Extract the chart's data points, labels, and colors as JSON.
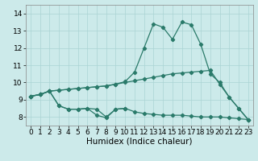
{
  "title": "",
  "xlabel": "Humidex (Indice chaleur)",
  "x": [
    0,
    1,
    2,
    3,
    4,
    5,
    6,
    7,
    8,
    9,
    10,
    11,
    12,
    13,
    14,
    15,
    16,
    17,
    18,
    19,
    20,
    21,
    22,
    23
  ],
  "line1": [
    9.2,
    9.3,
    9.5,
    9.55,
    9.6,
    9.65,
    9.7,
    9.75,
    9.8,
    9.9,
    10.0,
    10.1,
    10.2,
    10.3,
    10.4,
    10.5,
    10.55,
    10.6,
    10.65,
    10.7,
    9.9,
    9.15,
    8.5,
    7.85
  ],
  "line2": [
    9.2,
    9.3,
    9.5,
    9.55,
    9.6,
    9.65,
    9.7,
    9.75,
    9.8,
    9.9,
    10.05,
    10.6,
    12.0,
    13.4,
    13.2,
    12.5,
    13.5,
    13.35,
    12.2,
    10.5,
    10.0,
    9.15,
    8.5,
    7.85
  ],
  "line3": [
    9.2,
    9.3,
    9.5,
    8.65,
    8.45,
    8.45,
    8.5,
    8.1,
    7.95,
    8.45,
    8.5,
    null,
    null,
    null,
    null,
    null,
    null,
    null,
    null,
    null,
    null,
    null,
    null,
    null
  ],
  "line4": [
    9.2,
    9.3,
    9.5,
    8.65,
    8.45,
    8.45,
    8.5,
    8.45,
    8.0,
    8.45,
    8.5,
    8.3,
    8.2,
    8.15,
    8.1,
    8.1,
    8.1,
    8.05,
    8.0,
    8.0,
    8.0,
    7.95,
    7.9,
    7.85
  ],
  "color": "#2a7a6a",
  "background": "#cceaea",
  "ylim": [
    7.5,
    14.5
  ],
  "xlim": [
    -0.5,
    23.5
  ],
  "yticks": [
    8,
    9,
    10,
    11,
    12,
    13,
    14
  ],
  "xticks": [
    0,
    1,
    2,
    3,
    4,
    5,
    6,
    7,
    8,
    9,
    10,
    11,
    12,
    13,
    14,
    15,
    16,
    17,
    18,
    19,
    20,
    21,
    22,
    23
  ],
  "grid_color": "#aad4d4",
  "tick_fontsize": 6.5,
  "label_fontsize": 7.5,
  "linewidth": 0.9,
  "markersize": 2.2
}
